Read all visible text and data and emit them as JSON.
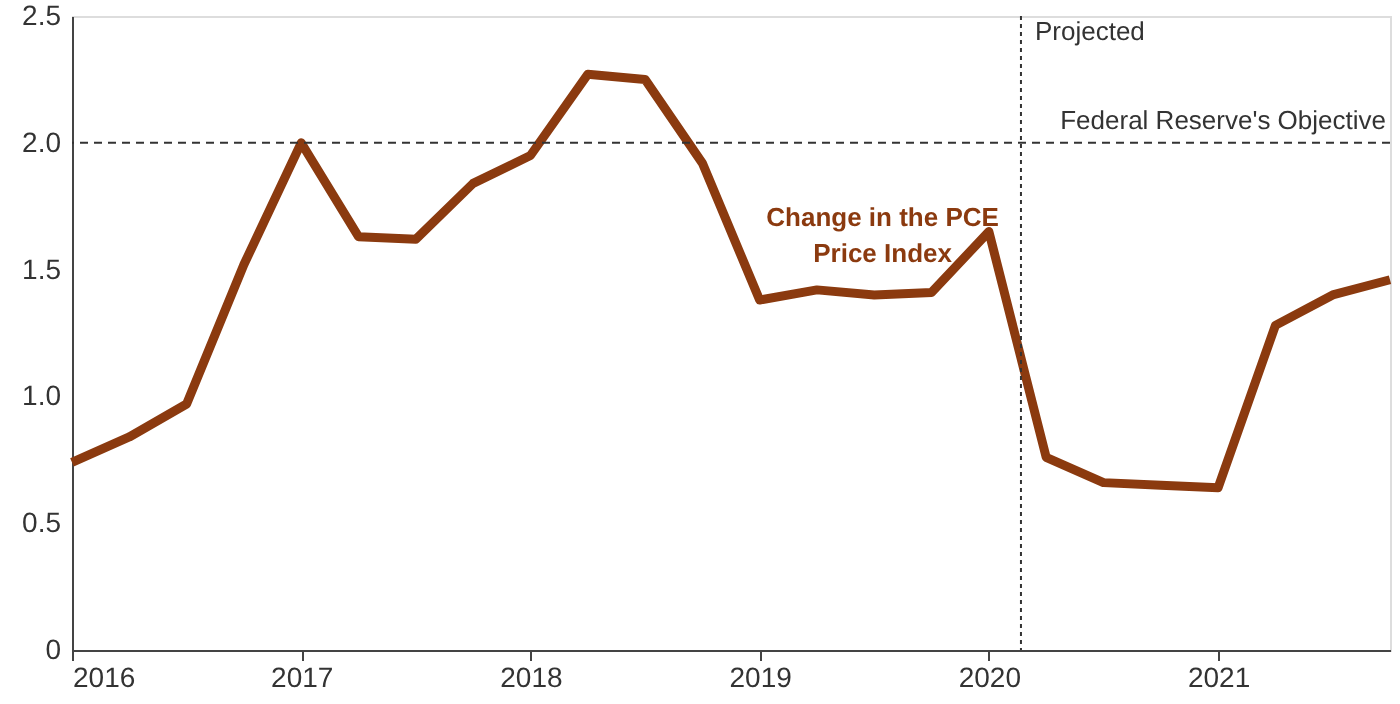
{
  "chart_data": {
    "type": "line",
    "x": [
      2016,
      2016.25,
      2016.5,
      2016.75,
      2017,
      2017.25,
      2017.5,
      2017.75,
      2018,
      2018.25,
      2018.5,
      2018.75,
      2019,
      2019.25,
      2019.5,
      2019.75,
      2020,
      2020.25,
      2020.5,
      2020.75,
      2021,
      2021.25,
      2021.5,
      2021.75
    ],
    "series": [
      {
        "name": "Change in the PCE Price Index",
        "color": "#8b3a0f",
        "values": [
          0.74,
          0.84,
          0.97,
          1.52,
          2.0,
          1.63,
          1.62,
          1.84,
          1.95,
          2.27,
          2.25,
          1.92,
          1.38,
          1.42,
          1.4,
          1.41,
          1.65,
          0.76,
          0.66,
          0.65,
          0.64,
          1.28,
          1.4,
          1.46
        ]
      }
    ],
    "xlim": [
      2016,
      2021.75
    ],
    "xticks": [
      2016,
      2017,
      2018,
      2019,
      2020,
      2021
    ],
    "ylim": [
      0,
      2.5
    ],
    "yticks": [
      0,
      0.5,
      {
        "value": 1,
        "label": "1.0"
      },
      1.5,
      {
        "value": 2,
        "label": "2.0"
      },
      2.5
    ],
    "ref_lines": [
      {
        "axis": "y",
        "value": 2.0,
        "label": "Federal Reserve's Objective",
        "line_style": "dashed",
        "color": "#333333"
      },
      {
        "axis": "x",
        "value": 2020.14,
        "label": "Projected",
        "line_style": "dotted",
        "color": "#333333"
      }
    ],
    "grid": false,
    "marker": "none",
    "line_style": "solid"
  }
}
